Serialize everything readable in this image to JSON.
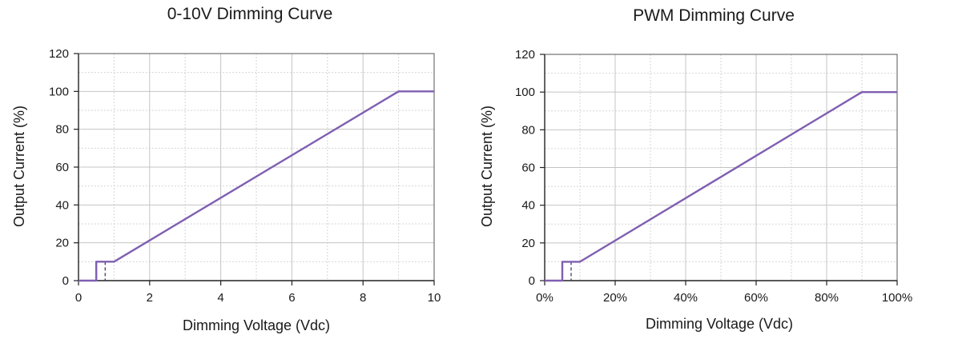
{
  "chart_data": [
    {
      "type": "line",
      "title": "0-10V Dimming Curve",
      "xlabel": "Dimming Voltage (Vdc)",
      "ylabel": "Output Current (%)",
      "xlim": [
        0,
        10
      ],
      "ylim": [
        0,
        120
      ],
      "x_ticks": [
        0,
        2,
        4,
        6,
        8,
        10
      ],
      "x_tick_labels": [
        "0",
        "2",
        "4",
        "6",
        "8",
        "10"
      ],
      "y_ticks": [
        0,
        20,
        40,
        60,
        80,
        100,
        120
      ],
      "y_tick_labels": [
        "0",
        "20",
        "40",
        "60",
        "80",
        "100",
        "120"
      ],
      "grid": true,
      "series": [
        {
          "x": [
            0,
            0.5,
            0.5,
            1,
            9,
            10
          ],
          "y": [
            0,
            0,
            10,
            10,
            100,
            100
          ],
          "color": "#7f5fb1"
        }
      ],
      "marker_x": 0.75,
      "marker_top": 10,
      "marker_color": "#3b3b6b"
    },
    {
      "type": "line",
      "title": "PWM Dimming Curve",
      "xlabel": "Dimming Voltage (Vdc)",
      "ylabel": "Output Current (%)",
      "xlim": [
        0,
        100
      ],
      "ylim": [
        0,
        120
      ],
      "x_ticks": [
        0,
        20,
        40,
        60,
        80,
        100
      ],
      "x_tick_labels": [
        "0%",
        "20%",
        "40%",
        "60%",
        "80%",
        "100%"
      ],
      "y_ticks": [
        0,
        20,
        40,
        60,
        80,
        100,
        120
      ],
      "y_tick_labels": [
        "0",
        "20",
        "40",
        "60",
        "80",
        "100",
        "120"
      ],
      "grid": true,
      "series": [
        {
          "x": [
            0,
            5,
            5,
            10,
            90,
            100
          ],
          "y": [
            0,
            0,
            10,
            10,
            100,
            100
          ],
          "color": "#7f5fb1"
        }
      ],
      "marker_x": 7.5,
      "marker_top": 10,
      "marker_color": "#3b3b6b"
    }
  ]
}
